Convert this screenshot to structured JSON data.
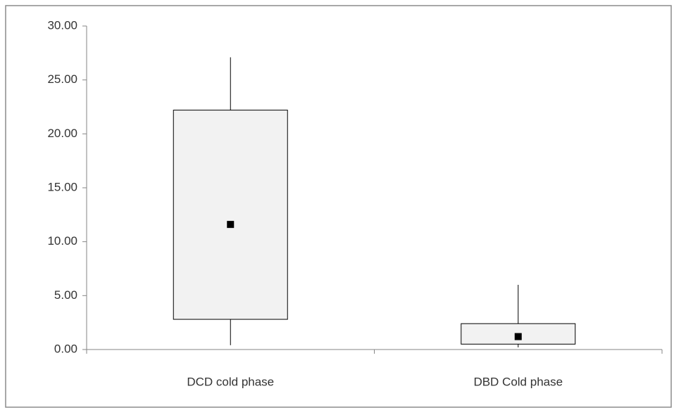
{
  "chart_data": {
    "type": "box",
    "categories": [
      "DCD cold phase",
      "DBD Cold phase"
    ],
    "low": [
      0.4,
      0.2
    ],
    "q1": [
      2.8,
      0.5
    ],
    "q3": [
      22.2,
      2.4
    ],
    "high": [
      27.1,
      6.0
    ],
    "mean": [
      11.6,
      1.2
    ],
    "color": "#f2f2f2",
    "ylim": [
      0,
      30
    ],
    "yticks": [
      {
        "value": 0,
        "label": "0.00"
      },
      {
        "value": 5,
        "label": "5.00"
      },
      {
        "value": 10,
        "label": "10.00"
      },
      {
        "value": 15,
        "label": "15.00"
      },
      {
        "value": 20,
        "label": "20.00"
      },
      {
        "value": 25,
        "label": "25.00"
      },
      {
        "value": 30,
        "label": "30.00"
      }
    ],
    "grid": false
  }
}
